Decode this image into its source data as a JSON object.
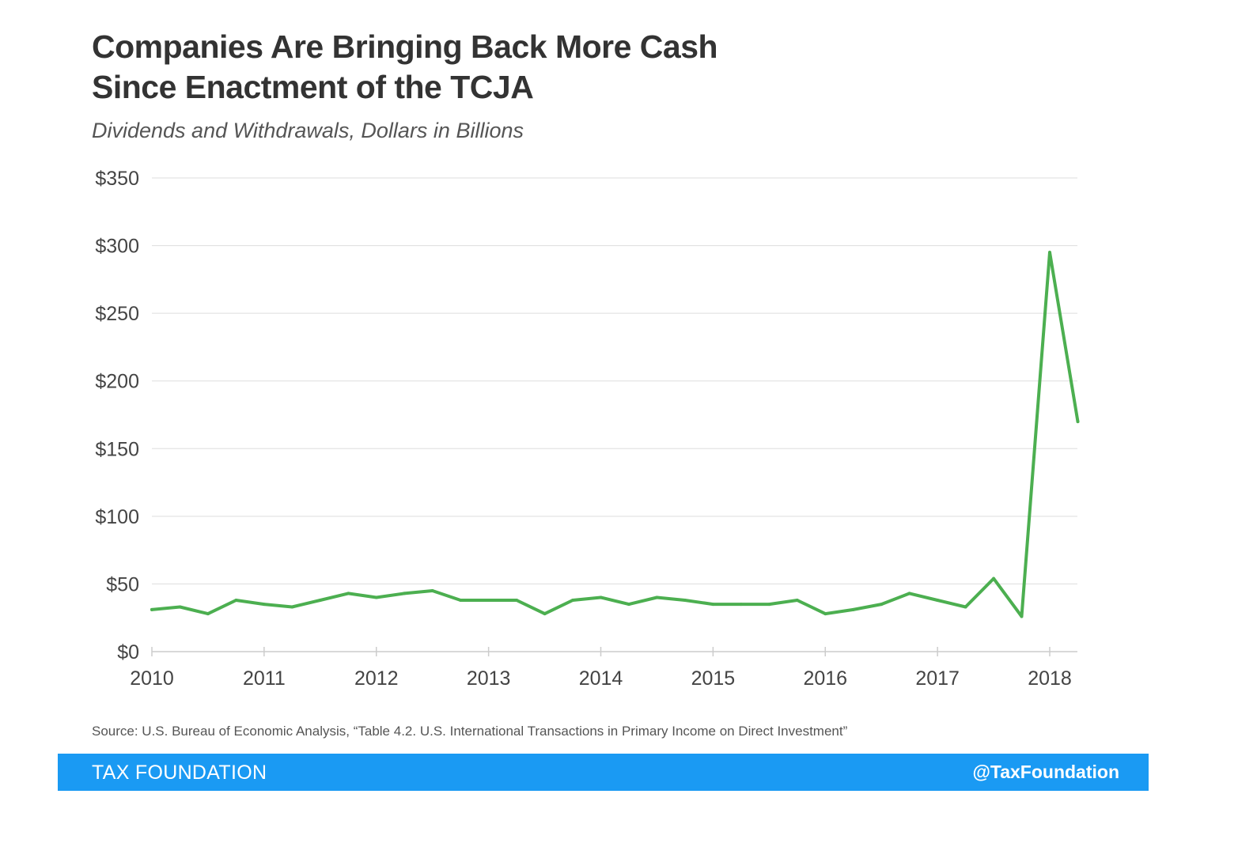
{
  "header": {
    "title_line1": "Companies Are Bringing Back More Cash",
    "title_line2": "Since Enactment of the TCJA",
    "subtitle": "Dividends and Withdrawals, Dollars in Billions"
  },
  "source": "Source: U.S. Bureau of Economic Analysis, “Table 4.2. U.S. International Transactions in Primary Income on Direct Investment”",
  "footer": {
    "brand": "TAX FOUNDATION",
    "handle": "@TaxFoundation"
  },
  "colors": {
    "line": "#4caf50",
    "grid": "#dddddd",
    "axis": "#cccccc",
    "footer_bg": "#1a9af3",
    "title": "#333333",
    "tick_label": "#444444"
  },
  "chart_data": {
    "type": "line",
    "title": "Companies Are Bringing Back More Cash Since Enactment of the TCJA",
    "subtitle": "Dividends and Withdrawals, Dollars in Billions",
    "xlabel": "",
    "ylabel": "",
    "ylim": [
      0,
      350
    ],
    "xlim": [
      2010,
      2018.25
    ],
    "grid": true,
    "legend": "none",
    "x_ticks": [
      2010,
      2011,
      2012,
      2013,
      2014,
      2015,
      2016,
      2017,
      2018
    ],
    "x_tick_labels": [
      "2010",
      "2011",
      "2012",
      "2013",
      "2014",
      "2015",
      "2016",
      "2017",
      "2018"
    ],
    "y_ticks": [
      0,
      50,
      100,
      150,
      200,
      250,
      300,
      350
    ],
    "y_tick_labels": [
      "$0",
      "$50",
      "$100",
      "$150",
      "$200",
      "$250",
      "$300",
      "$350"
    ],
    "series": [
      {
        "name": "",
        "color": "#4caf50",
        "points": [
          {
            "x": "2010 Q1",
            "y": 31
          },
          {
            "x": "2010 Q2",
            "y": 33
          },
          {
            "x": "2010 Q3",
            "y": 28
          },
          {
            "x": "2010 Q4",
            "y": 38
          },
          {
            "x": "2011 Q1",
            "y": 35
          },
          {
            "x": "2011 Q2",
            "y": 33
          },
          {
            "x": "2011 Q3",
            "y": 38
          },
          {
            "x": "2011 Q4",
            "y": 43
          },
          {
            "x": "2012 Q1",
            "y": 40
          },
          {
            "x": "2012 Q2",
            "y": 43
          },
          {
            "x": "2012 Q3",
            "y": 45
          },
          {
            "x": "2012 Q4",
            "y": 38
          },
          {
            "x": "2013 Q1",
            "y": 38
          },
          {
            "x": "2013 Q2",
            "y": 38
          },
          {
            "x": "2013 Q3",
            "y": 28
          },
          {
            "x": "2013 Q4",
            "y": 38
          },
          {
            "x": "2014 Q1",
            "y": 40
          },
          {
            "x": "2014 Q2",
            "y": 35
          },
          {
            "x": "2014 Q3",
            "y": 40
          },
          {
            "x": "2014 Q4",
            "y": 38
          },
          {
            "x": "2015 Q1",
            "y": 35
          },
          {
            "x": "2015 Q2",
            "y": 35
          },
          {
            "x": "2015 Q3",
            "y": 35
          },
          {
            "x": "2015 Q4",
            "y": 38
          },
          {
            "x": "2016 Q1",
            "y": 28
          },
          {
            "x": "2016 Q2",
            "y": 31
          },
          {
            "x": "2016 Q3",
            "y": 35
          },
          {
            "x": "2016 Q4",
            "y": 43
          },
          {
            "x": "2017 Q1",
            "y": 38
          },
          {
            "x": "2017 Q2",
            "y": 33
          },
          {
            "x": "2017 Q3",
            "y": 54
          },
          {
            "x": "2017 Q4",
            "y": 26
          },
          {
            "x": "2018 Q1",
            "y": 295
          },
          {
            "x": "2018 Q2",
            "y": 170
          }
        ]
      }
    ]
  }
}
